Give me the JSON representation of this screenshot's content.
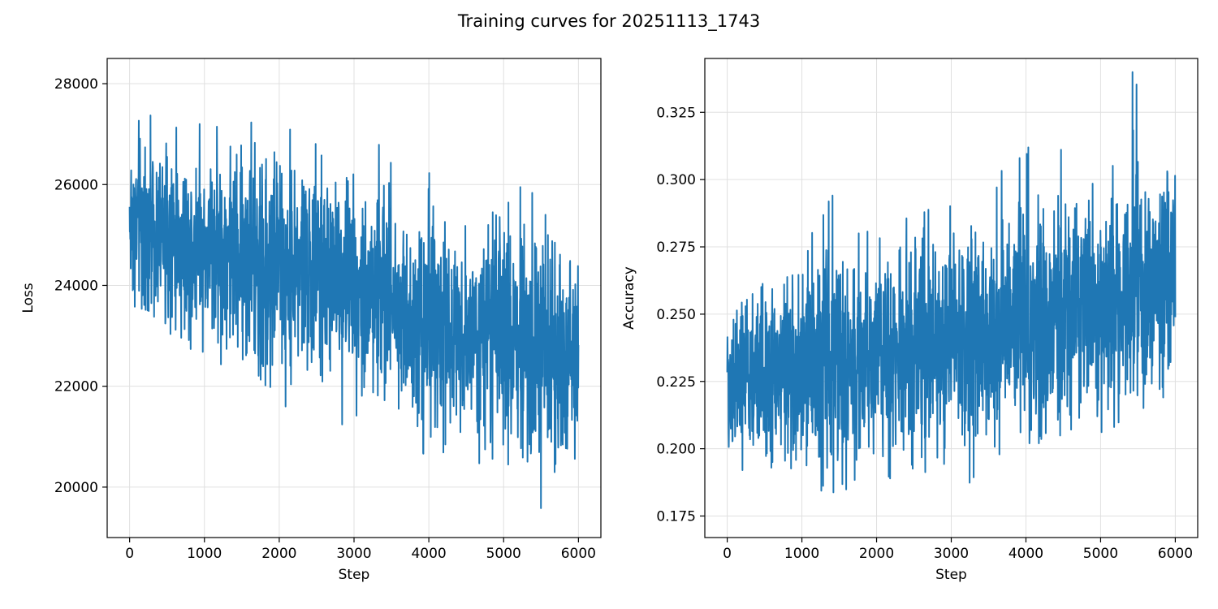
{
  "figure": {
    "title": "Training curves for 20251113_1743"
  },
  "colors": {
    "series": "#1f77b4",
    "grid": "#e0e0e0",
    "axes": "#000000"
  },
  "chart_data": [
    {
      "type": "line",
      "title": "",
      "xlabel": "Step",
      "ylabel": "Loss",
      "xlim": [
        -300,
        6300
      ],
      "ylim": [
        19000,
        28500
      ],
      "xticks": [
        0,
        1000,
        2000,
        3000,
        4000,
        5000,
        6000
      ],
      "xtick_labels": [
        "0",
        "1000",
        "2000",
        "3000",
        "4000",
        "5000",
        "6000"
      ],
      "yticks": [
        20000,
        22000,
        24000,
        26000,
        28000
      ],
      "ytick_labels": [
        "20000",
        "22000",
        "24000",
        "26000",
        "28000"
      ],
      "grid": true,
      "legend": "none",
      "series": [
        {
          "x": [
            0,
            250,
            500,
            750,
            1000,
            1250,
            1500,
            1750,
            2000,
            2250,
            2500,
            2750,
            3000,
            3250,
            3500,
            3750,
            4000,
            4250,
            4500,
            4750,
            5000,
            5250,
            5500,
            5750,
            6000
          ],
          "mean": [
            25300,
            25200,
            25000,
            24900,
            24800,
            24700,
            24600,
            24500,
            24400,
            24300,
            24200,
            24100,
            24000,
            23900,
            23700,
            23500,
            23400,
            23300,
            23200,
            23100,
            23000,
            22900,
            22800,
            22700,
            22600
          ],
          "max": [
            27900,
            28100,
            27700,
            27400,
            27300,
            27200,
            27200,
            27650,
            27350,
            27150,
            26800,
            26300,
            26200,
            27250,
            26550,
            26400,
            26400,
            25700,
            25600,
            25400,
            26100,
            26100,
            25600,
            25550,
            25850
          ],
          "min": [
            23600,
            23500,
            23100,
            22700,
            22500,
            22400,
            21600,
            22100,
            21700,
            21400,
            21500,
            21300,
            21100,
            21600,
            21500,
            21000,
            20400,
            20500,
            20300,
            20300,
            20000,
            19500,
            19500,
            19700,
            20400
          ]
        }
      ]
    },
    {
      "type": "line",
      "title": "",
      "xlabel": "Step",
      "ylabel": "Accuracy",
      "xlim": [
        -300,
        6300
      ],
      "ylim": [
        0.167,
        0.345
      ],
      "xticks": [
        0,
        1000,
        2000,
        3000,
        4000,
        5000,
        6000
      ],
      "xtick_labels": [
        "0",
        "1000",
        "2000",
        "3000",
        "4000",
        "5000",
        "6000"
      ],
      "yticks": [
        0.175,
        0.2,
        0.225,
        0.25,
        0.275,
        0.3,
        0.325
      ],
      "ytick_labels": [
        "0.175",
        "0.200",
        "0.225",
        "0.250",
        "0.275",
        "0.300",
        "0.325"
      ],
      "grid": true,
      "legend": "none",
      "series": [
        {
          "x": [
            0,
            250,
            500,
            750,
            1000,
            1250,
            1500,
            1750,
            2000,
            2250,
            2500,
            2750,
            3000,
            3250,
            3500,
            3750,
            4000,
            4250,
            4500,
            4750,
            5000,
            5250,
            5500,
            5750,
            6000
          ],
          "mean": [
            0.225,
            0.226,
            0.228,
            0.229,
            0.23,
            0.231,
            0.232,
            0.233,
            0.235,
            0.236,
            0.237,
            0.238,
            0.24,
            0.241,
            0.243,
            0.245,
            0.247,
            0.249,
            0.251,
            0.253,
            0.255,
            0.257,
            0.259,
            0.262,
            0.265
          ],
          "max": [
            0.252,
            0.255,
            0.262,
            0.272,
            0.275,
            0.289,
            0.303,
            0.283,
            0.28,
            0.28,
            0.29,
            0.292,
            0.296,
            0.294,
            0.291,
            0.309,
            0.315,
            0.315,
            0.311,
            0.32,
            0.31,
            0.339,
            0.341,
            0.32,
            0.314
          ],
          "min": [
            0.176,
            0.176,
            0.177,
            0.18,
            0.175,
            0.183,
            0.184,
            0.183,
            0.188,
            0.188,
            0.186,
            0.19,
            0.186,
            0.186,
            0.195,
            0.2,
            0.202,
            0.202,
            0.205,
            0.21,
            0.203,
            0.21,
            0.213,
            0.22,
            0.216
          ]
        }
      ]
    }
  ]
}
